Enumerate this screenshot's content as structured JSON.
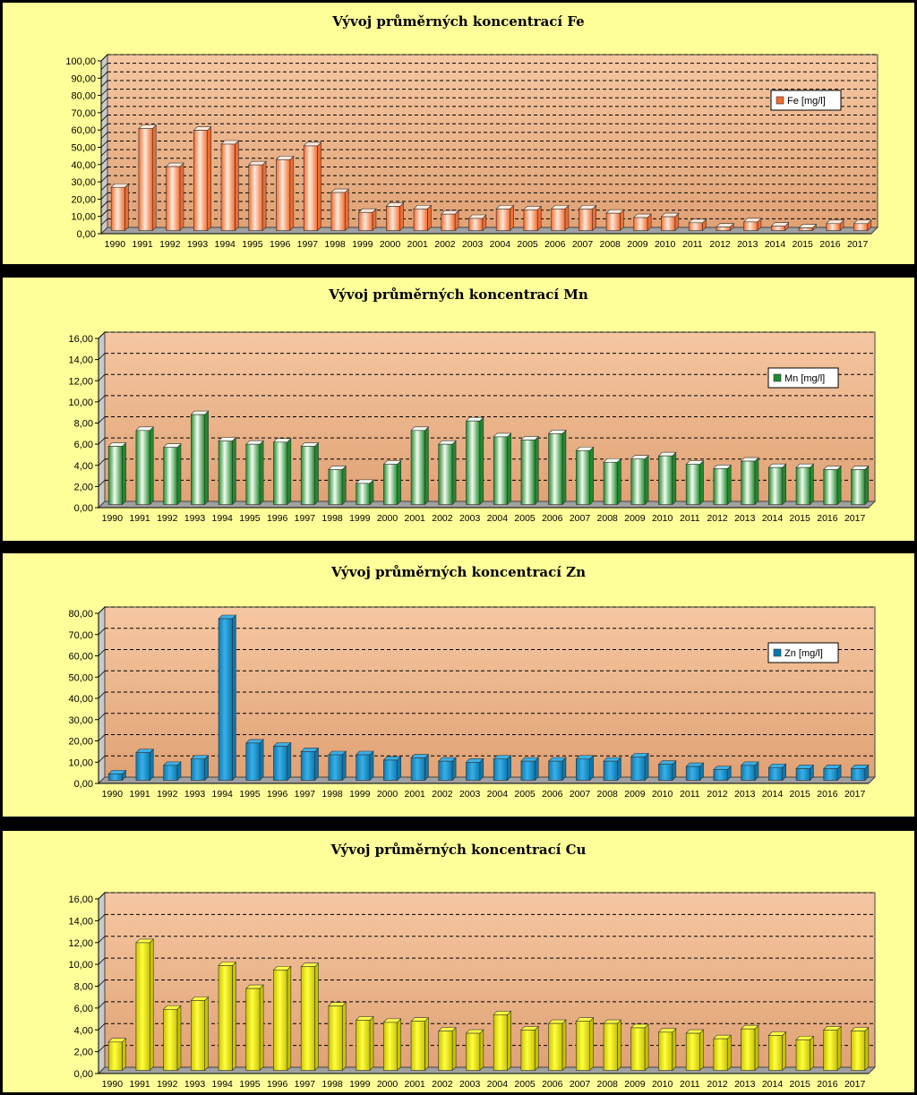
{
  "chart_data": [
    {
      "type": "bar",
      "title": "Vývoj průměrných koncentrací  Fe",
      "categories": [
        "1990",
        "1991",
        "1992",
        "1993",
        "1994",
        "1995",
        "1996",
        "1997",
        "1998",
        "1999",
        "2000",
        "2001",
        "2002",
        "2003",
        "2004",
        "2005",
        "2006",
        "2007",
        "2008",
        "2009",
        "2010",
        "2011",
        "2012",
        "2013",
        "2014",
        "2015",
        "2016",
        "2017"
      ],
      "series": [
        {
          "name": "Fe [mg/l]",
          "values": [
            25,
            59,
            37,
            58,
            50,
            38,
            41,
            49,
            22,
            10.5,
            14,
            12.5,
            9.5,
            7,
            12.5,
            12,
            12.5,
            12.5,
            10,
            7.5,
            8,
            4.5,
            2,
            5,
            2.5,
            1.5,
            4,
            4
          ]
        }
      ],
      "ylim": [
        0,
        100
      ],
      "yticks": [
        "0,00",
        "10,00",
        "20,00",
        "30,00",
        "40,00",
        "50,00",
        "60,00",
        "70,00",
        "80,00",
        "90,00",
        "100,00"
      ],
      "ystep": 10,
      "minor": true,
      "legend": "top-right",
      "grid": true,
      "colors": {
        "bar": "#f26b2e",
        "light": "#ffe9da",
        "back": "#f5c7a2",
        "back_bottom": "#e0a275"
      }
    },
    {
      "type": "bar",
      "title": "Vývoj průměrných koncentrací  Mn",
      "categories": [
        "1990",
        "1991",
        "1992",
        "1993",
        "1994",
        "1995",
        "1996",
        "1997",
        "1998",
        "1999",
        "2000",
        "2001",
        "2002",
        "2003",
        "2004",
        "2005",
        "2006",
        "2007",
        "2008",
        "2009",
        "2010",
        "2011",
        "2012",
        "2013",
        "2014",
        "2015",
        "2016",
        "2017"
      ],
      "series": [
        {
          "name": "Mn [mg/l]",
          "values": [
            5.5,
            7,
            5.4,
            8.5,
            6,
            5.7,
            5.9,
            5.5,
            3.3,
            2,
            3.8,
            7,
            5.7,
            7.9,
            6.4,
            6.1,
            6.7,
            5.1,
            4,
            4.3,
            4.6,
            3.8,
            3.4,
            4.1,
            3.5,
            3.5,
            3.3,
            3.3
          ]
        }
      ],
      "ylim": [
        0,
        16
      ],
      "yticks": [
        "0,00",
        "2,00",
        "4,00",
        "6,00",
        "8,00",
        "10,00",
        "12,00",
        "14,00",
        "16,00"
      ],
      "ystep": 2,
      "minor": false,
      "legend": "top-right",
      "grid": true,
      "colors": {
        "bar": "#1f8a2c",
        "light": "#f2fbf0",
        "back": "#f5c7a2",
        "back_bottom": "#e0a275"
      }
    },
    {
      "type": "bar",
      "title": "Vývoj průměrných koncentrací  Zn",
      "categories": [
        "1990",
        "1991",
        "1992",
        "1993",
        "1994",
        "1995",
        "1996",
        "1997",
        "1998",
        "1999",
        "2000",
        "2001",
        "2002",
        "2003",
        "2004",
        "2005",
        "2006",
        "2007",
        "2008",
        "2009",
        "2010",
        "2011",
        "2012",
        "2013",
        "2014",
        "2015",
        "2016",
        "2017"
      ],
      "series": [
        {
          "name": "Zn [mg/l]",
          "values": [
            3,
            13,
            7,
            10,
            76,
            17.5,
            16,
            13.5,
            12,
            12,
            9.5,
            10.5,
            9,
            8.5,
            10,
            9,
            9,
            10,
            9,
            11,
            7.5,
            6.5,
            5,
            7,
            6,
            5.5,
            5.5,
            5.5
          ]
        }
      ],
      "ylim": [
        0,
        80
      ],
      "yticks": [
        "0,00",
        "10,00",
        "20,00",
        "30,00",
        "40,00",
        "50,00",
        "60,00",
        "70,00",
        "80,00"
      ],
      "ystep": 10,
      "minor": false,
      "legend": "top-right",
      "grid": true,
      "colors": {
        "bar": "#0b78b0",
        "light": "#3ab0e8",
        "back": "#f5c7a2",
        "back_bottom": "#e0a275"
      }
    },
    {
      "type": "bar",
      "title": "Vývoj průměrných koncentrací  Cu",
      "categories": [
        "1990",
        "1991",
        "1992",
        "1993",
        "1994",
        "1995",
        "1996",
        "1997",
        "1998",
        "1999",
        "2000",
        "2001",
        "2002",
        "2003",
        "2004",
        "2005",
        "2006",
        "2007",
        "2008",
        "2009",
        "2010",
        "2011",
        "2012",
        "2013",
        "2014",
        "2015",
        "2016",
        "2017"
      ],
      "series": [
        {
          "name": "",
          "values": [
            2.6,
            11.7,
            5.6,
            6.4,
            9.6,
            7.5,
            9.2,
            9.5,
            5.9,
            4.6,
            4.4,
            4.5,
            3.6,
            3.4,
            5.1,
            3.7,
            4.3,
            4.5,
            4.3,
            3.9,
            3.5,
            3.4,
            2.9,
            3.8,
            3.2,
            2.8,
            3.7,
            3.6
          ]
        }
      ],
      "ylim": [
        0,
        16
      ],
      "yticks": [
        "0,00",
        "2,00",
        "4,00",
        "6,00",
        "8,00",
        "10,00",
        "12,00",
        "14,00",
        "16,00"
      ],
      "ystep": 2,
      "minor": false,
      "legend": "none",
      "grid": true,
      "colors": {
        "bar": "#c9c400",
        "light": "#ffff40",
        "back": "#f5c7a2",
        "back_bottom": "#e0a275"
      }
    }
  ]
}
